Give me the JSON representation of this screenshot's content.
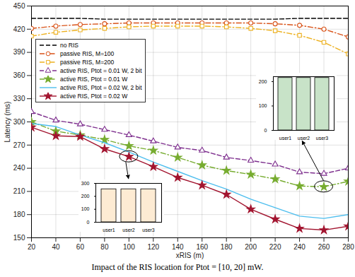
{
  "chart_data": [
    {
      "type": "line",
      "caption": "Impact of the RIS location for Ptot = [10, 20] mW.",
      "x_label": "xRIS (m)",
      "y_label": "Latency (ms)",
      "x": [
        20,
        40,
        60,
        80,
        100,
        120,
        140,
        160,
        180,
        200,
        220,
        240,
        260,
        280
      ],
      "xlim": [
        20,
        280
      ],
      "xticks": [
        20,
        40,
        60,
        80,
        100,
        120,
        140,
        160,
        180,
        200,
        220,
        240,
        260,
        280
      ],
      "ylim": [
        150,
        450
      ],
      "yticks": [
        150,
        180,
        210,
        240,
        270,
        300,
        330,
        360,
        390,
        420,
        450
      ],
      "grid": true,
      "legend": "upper left",
      "series": [
        {
          "name": "no RIS",
          "color": "#000000",
          "line_style": "dashed",
          "values": [
            434,
            434,
            434,
            433,
            433,
            433,
            433,
            433,
            433,
            433,
            433,
            434,
            434,
            434
          ]
        },
        {
          "name": "passive RIS, M=100",
          "color": "#d95319",
          "line_style": "dashdot",
          "marker": "circle",
          "values": [
            421,
            424,
            426,
            427,
            428,
            428,
            428,
            428,
            428,
            428,
            427,
            425,
            420,
            410
          ]
        },
        {
          "name": "passive RIS, M=200",
          "color": "#edb120",
          "line_style": "dashdot",
          "marker": "square",
          "values": [
            411,
            416,
            419,
            421,
            423,
            424,
            424,
            424,
            423,
            421,
            418,
            412,
            403,
            388
          ]
        },
        {
          "name": "active RIS, Ptot = 0.01 W, 2 bit",
          "color": "#7e2f8e",
          "line_style": "dashed",
          "marker": "triangle",
          "values": [
            313,
            302,
            297,
            290,
            283,
            275,
            267,
            263,
            254,
            250,
            245,
            235,
            233,
            240
          ]
        },
        {
          "name": "active RIS, Ptot = 0.01 W",
          "color": "#77ac30",
          "line_style": "dashdot",
          "marker": "star",
          "values": [
            300,
            288,
            283,
            277,
            269,
            263,
            254,
            244,
            237,
            232,
            226,
            217,
            216,
            223
          ]
        },
        {
          "name": "active RIS, Ptot = 0.02 W, 2 bit",
          "color": "#4dbeee",
          "line_style": "solid",
          "values": [
            298,
            294,
            283,
            273,
            261,
            248,
            236,
            224,
            213,
            200,
            189,
            178,
            175,
            180
          ]
        },
        {
          "name": "active RIS, Ptot = 0.02 W",
          "color": "#a2142f",
          "line_style": "solid",
          "marker": "star",
          "values": [
            293,
            282,
            281,
            265,
            255,
            242,
            228,
            218,
            206,
            187,
            174,
            162,
            160,
            165
          ]
        }
      ]
    },
    {
      "type": "bar",
      "categories": [
        "user1",
        "user2",
        "user3"
      ],
      "values": [
        255,
        255,
        255
      ],
      "color": "#fdebd3",
      "ylim": [
        0,
        300
      ],
      "yticks": [
        0,
        100,
        200,
        300
      ]
    },
    {
      "type": "bar",
      "categories": [
        "user1",
        "user2",
        "user3"
      ],
      "values": [
        215,
        215,
        215
      ],
      "color": "#c8e3c8",
      "ylim": [
        0,
        220
      ],
      "yticks": [
        0,
        100,
        200
      ]
    }
  ]
}
